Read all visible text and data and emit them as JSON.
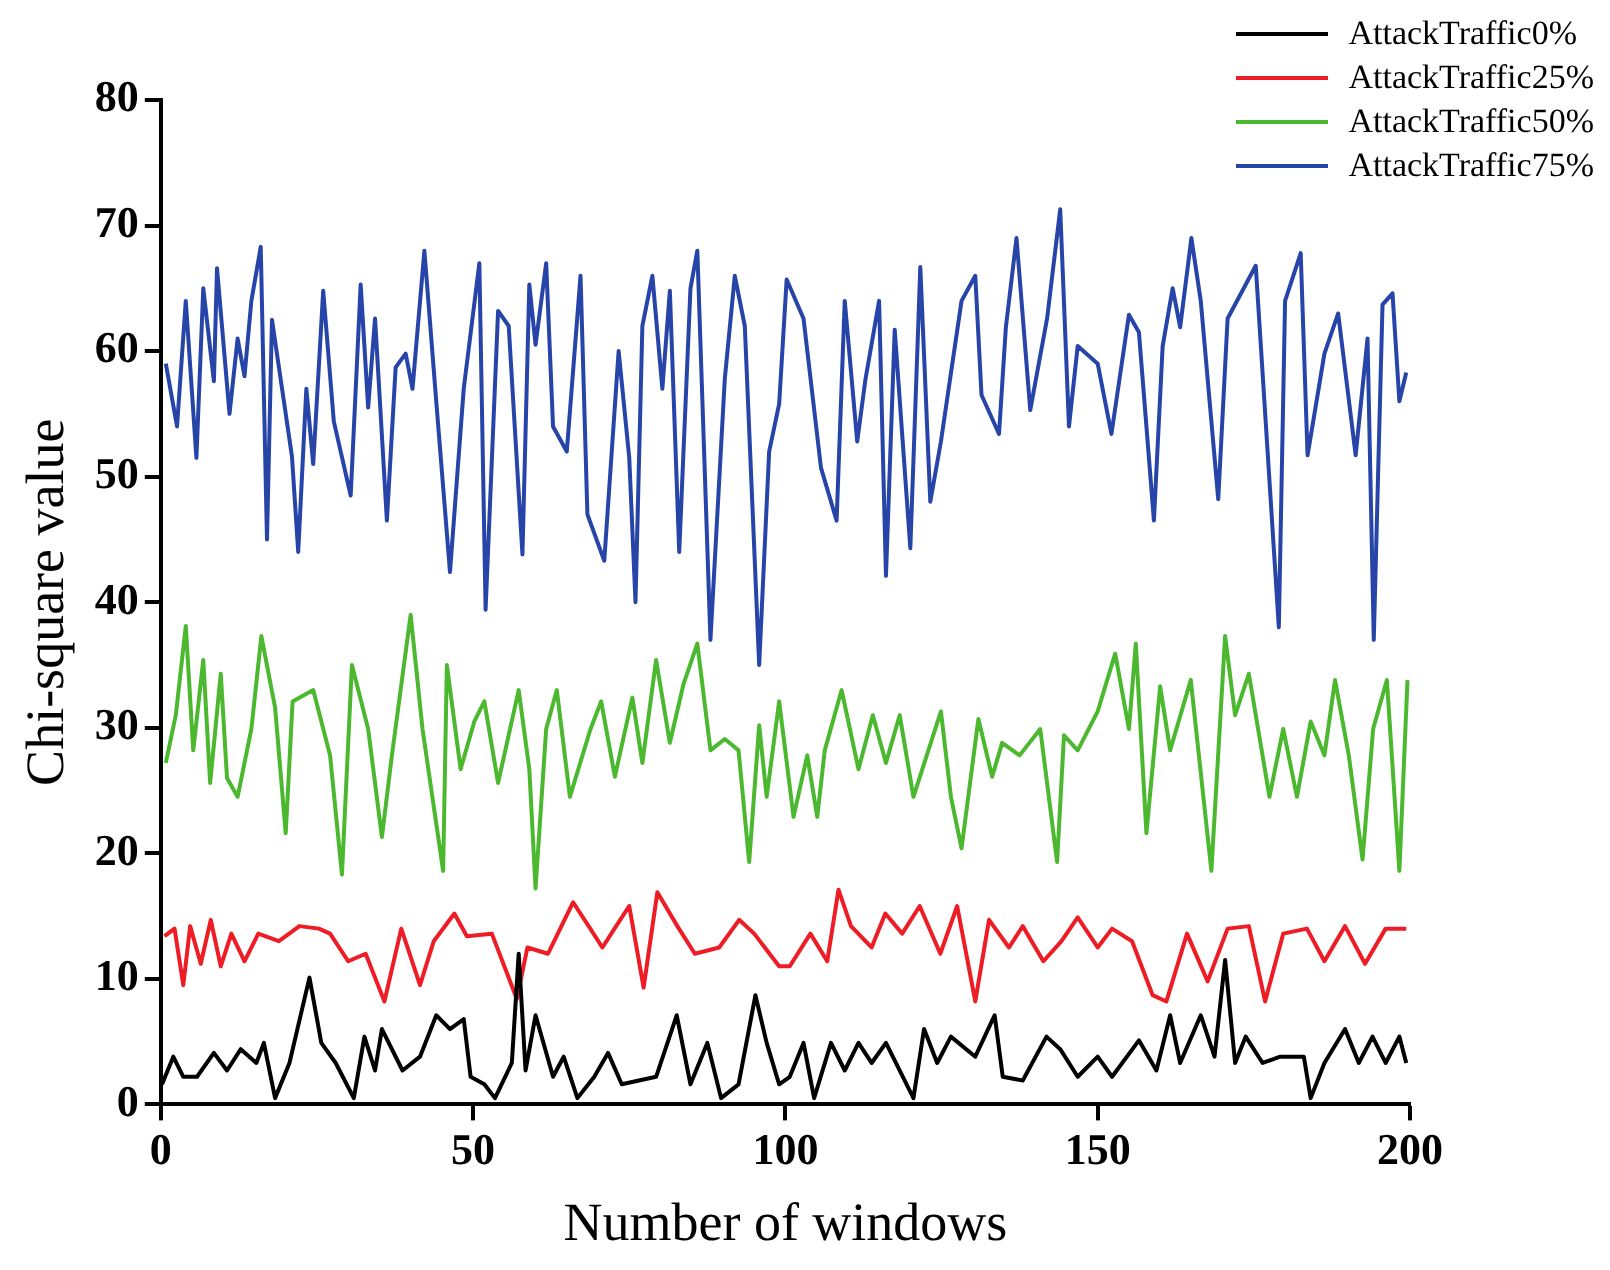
{
  "chart_data": {
    "type": "line",
    "xlabel": "Number of windows",
    "ylabel": "Chi-square value",
    "xlim": [
      0,
      200
    ],
    "xticks": [
      0,
      50,
      100,
      150,
      200
    ],
    "ylim": [
      0,
      80
    ],
    "yticks": [
      0,
      10,
      20,
      30,
      40,
      50,
      60,
      70,
      80
    ],
    "grid": false,
    "legend": "top right",
    "marker": "none",
    "line_style": "solid",
    "series": [
      {
        "name": "AttackTraffic0%",
        "color": "#000000",
        "x": [
          0.2,
          2,
          3.6,
          5.8,
          8.5,
          10.6,
          12.8,
          15.3,
          16.5,
          18.3,
          20.6,
          23.8,
          25.7,
          28,
          30.9,
          32.6,
          34.3,
          35.4,
          38.7,
          41.5,
          44.1,
          46.3,
          48.5,
          49.6,
          51.8,
          53.5,
          56.2,
          57.3,
          58.4,
          60,
          62.8,
          64.5,
          66.7,
          69.4,
          71.6,
          73.8,
          79.3,
          82.6,
          84.8,
          87.5,
          89.7,
          92.5,
          95.2,
          97,
          99,
          100.7,
          102.9,
          104.6,
          107.3,
          109.5,
          111.7,
          113.8,
          116.1,
          120.5,
          122.2,
          124.3,
          126.5,
          130.4,
          133.5,
          134.8,
          138,
          141.8,
          144,
          146.8,
          150,
          152.3,
          156.6,
          159.4,
          161.6,
          163.2,
          166.5,
          168.7,
          170.4,
          172,
          173.7,
          176.4,
          179.2,
          183,
          184.1,
          186.3,
          189.6,
          191.8,
          194,
          196.1,
          198.3,
          199.4
        ],
        "values": [
          1.6,
          3.8,
          2.2,
          2.2,
          4.1,
          2.7,
          4.4,
          3.3,
          4.9,
          0.5,
          3.3,
          10.1,
          4.9,
          3.3,
          0.5,
          5.4,
          2.7,
          6,
          2.7,
          3.8,
          7.1,
          6,
          6.8,
          2.2,
          1.6,
          0.5,
          3.3,
          12,
          2.7,
          7.1,
          2.2,
          3.8,
          0.5,
          2.2,
          4.1,
          1.6,
          2.2,
          7.1,
          1.6,
          4.9,
          0.5,
          1.6,
          8.7,
          4.9,
          1.6,
          2.2,
          4.9,
          0.5,
          4.9,
          2.7,
          4.9,
          3.3,
          4.9,
          0.5,
          6,
          3.3,
          5.4,
          3.8,
          7.1,
          2.2,
          1.9,
          5.4,
          4.4,
          2.2,
          3.8,
          2.2,
          5.1,
          2.7,
          7.1,
          3.3,
          7.1,
          3.8,
          11.5,
          3.3,
          5.4,
          3.3,
          3.8,
          3.8,
          0.5,
          3.3,
          6,
          3.3,
          5.4,
          3.3,
          5.4,
          3.3
        ]
      },
      {
        "name": "AttackTraffic25%",
        "color": "#ee1c24",
        "x": [
          0.6,
          2.2,
          3.6,
          4.7,
          6.4,
          8,
          9.6,
          11.3,
          13.4,
          15.6,
          18.9,
          22.2,
          25.3,
          27.1,
          30,
          32.8,
          35.8,
          38.5,
          41.5,
          43.7,
          47,
          49,
          53,
          57,
          58.7,
          62,
          66,
          68.5,
          70.7,
          72.9,
          75,
          77.3,
          79.5,
          82.7,
          85.5,
          89.4,
          92.6,
          95,
          99,
          100.7,
          104,
          106.7,
          108.5,
          110.5,
          113.8,
          116,
          118.7,
          121.5,
          124.8,
          127.5,
          130.4,
          132.6,
          135.8,
          138,
          141.3,
          144.2,
          146.8,
          150,
          152.3,
          155.5,
          158.8,
          161,
          164.3,
          167.6,
          170.8,
          174.2,
          176.8,
          179.7,
          183.5,
          186.3,
          189.6,
          192.8,
          196.1,
          199.4
        ],
        "values": [
          13.4,
          14,
          9.5,
          14.2,
          11.2,
          14.7,
          11,
          13.6,
          11.4,
          13.6,
          13,
          14.2,
          14,
          13.6,
          11.4,
          12,
          8.2,
          14,
          9.5,
          13,
          15.2,
          13.4,
          13.6,
          8.4,
          12.5,
          12,
          16.1,
          14.2,
          12.5,
          14.2,
          15.8,
          9.3,
          16.9,
          14.2,
          12,
          12.5,
          14.7,
          13.6,
          11,
          11,
          13.6,
          11.4,
          17.1,
          14.2,
          12.5,
          15.2,
          13.6,
          15.8,
          12,
          15.8,
          8.2,
          14.7,
          12.5,
          14.2,
          11.4,
          13,
          14.9,
          12.5,
          14,
          13,
          8.7,
          8.2,
          13.6,
          9.8,
          14,
          14.2,
          8.2,
          13.6,
          14,
          11.4,
          14.2,
          11.2,
          14,
          14
        ]
      },
      {
        "name": "AttackTraffic50%",
        "color": "#4cb830",
        "x": [
          0.8,
          2.4,
          4,
          5.2,
          6.8,
          7.9,
          9.6,
          10.6,
          12.3,
          14.5,
          16.1,
          18.3,
          20,
          21.1,
          24.4,
          27.1,
          29,
          30.6,
          33.2,
          35.4,
          37,
          40,
          41.9,
          45.2,
          45.8,
          48,
          50.2,
          51.8,
          54,
          57.3,
          59,
          60,
          61.7,
          63.4,
          65.5,
          68.8,
          70.5,
          72.7,
          75.5,
          77.1,
          79.3,
          81.5,
          83.7,
          85.9,
          88,
          90.3,
          92.5,
          94.2,
          95.8,
          97,
          99,
          101.3,
          103.5,
          105.1,
          106.3,
          109,
          111.7,
          114,
          116.1,
          118.3,
          120.5,
          124.9,
          126.5,
          128.2,
          130.9,
          133.1,
          134.7,
          137.5,
          140.8,
          143.5,
          144.6,
          146.8,
          150,
          152.8,
          155,
          156.1,
          157.8,
          160,
          161.6,
          164.9,
          166.2,
          168.2,
          170.4,
          172,
          174.2,
          177.5,
          179.7,
          181.9,
          184.1,
          186.3,
          188,
          190.2,
          192.4,
          194.1,
          196.3,
          198.3,
          199.6
        ],
        "values": [
          27.2,
          31,
          38.1,
          28.2,
          35.4,
          25.6,
          34.3,
          26,
          24.5,
          29.9,
          37.3,
          31.6,
          21.6,
          32.1,
          33,
          27.8,
          18.3,
          35,
          29.9,
          21.3,
          27.8,
          39,
          29.9,
          18.6,
          35,
          26.7,
          30.5,
          32.1,
          25.6,
          33,
          26.7,
          17.2,
          29.9,
          33,
          24.5,
          29.9,
          32.1,
          26.1,
          32.4,
          27.2,
          35.4,
          28.8,
          33.5,
          36.7,
          28.2,
          29.1,
          28.2,
          19.3,
          30.2,
          24.5,
          32.1,
          22.9,
          27.8,
          22.9,
          28.2,
          33,
          26.7,
          31,
          27.2,
          31,
          24.5,
          31.3,
          24.5,
          20.4,
          30.7,
          26.1,
          28.8,
          27.8,
          29.9,
          19.3,
          29.4,
          28.2,
          31.3,
          35.9,
          29.9,
          36.7,
          21.6,
          33.3,
          28.2,
          33.8,
          27.8,
          18.6,
          37.3,
          31,
          34.3,
          24.5,
          29.9,
          24.5,
          30.5,
          27.8,
          33.8,
          27.8,
          19.5,
          29.9,
          33.8,
          18.6,
          33.8
        ]
      },
      {
        "name": "AttackTraffic75%",
        "color": "#2744a8",
        "x": [
          0.8,
          2.6,
          4,
          5.7,
          6.8,
          8.5,
          9,
          11,
          12.3,
          13.4,
          14.5,
          16,
          17,
          17.8,
          21,
          22,
          23.3,
          24.4,
          26,
          27.7,
          30.4,
          32,
          33.2,
          34.3,
          36.2,
          37.6,
          39.2,
          40.3,
          42.2,
          44.1,
          46.3,
          48.5,
          51,
          52,
          54,
          55.7,
          57.9,
          59,
          60,
          61.7,
          62.8,
          65,
          67.2,
          68.3,
          71,
          73.3,
          75,
          76,
          77.1,
          78.7,
          80.3,
          81.5,
          83,
          84.8,
          85.9,
          88,
          90.3,
          91.9,
          93.5,
          95.8,
          97.4,
          99,
          100.2,
          102.9,
          105.7,
          108.2,
          109.5,
          111.5,
          112.8,
          115,
          116.1,
          117.5,
          120,
          121.6,
          123.2,
          124.9,
          128.2,
          130.4,
          131.4,
          134.2,
          135.3,
          137,
          139.2,
          141.9,
          144,
          145.4,
          146.8,
          150,
          152.2,
          155,
          156.6,
          159,
          160.4,
          162,
          163.2,
          165,
          166.5,
          169.3,
          170.8,
          175.3,
          179,
          180,
          182.5,
          183.6,
          186.3,
          188.5,
          191.3,
          193.2,
          194.2,
          195.6,
          197.2,
          198.3,
          199.4
        ],
        "values": [
          59,
          54,
          64,
          51.5,
          65,
          57.6,
          66.6,
          55,
          61,
          58,
          64,
          68.3,
          45,
          62.5,
          51.6,
          44,
          57,
          51,
          64.8,
          54.4,
          48.5,
          65.3,
          55.5,
          62.6,
          46.5,
          58.7,
          59.8,
          57,
          68,
          56,
          42.4,
          57,
          67,
          39.4,
          63.2,
          62,
          43.8,
          65.3,
          60.5,
          67,
          54,
          52,
          66,
          47,
          43.3,
          60,
          51.5,
          40,
          62,
          66,
          57,
          64.8,
          44,
          65,
          68,
          37,
          57.8,
          66,
          62,
          35,
          52,
          55.8,
          65.7,
          62.6,
          50.7,
          46.5,
          64,
          52.8,
          57.7,
          64,
          42.1,
          61.7,
          44.3,
          66.7,
          48,
          52.8,
          64,
          66,
          56.5,
          53.4,
          61.9,
          69,
          55.3,
          62.6,
          71.3,
          54,
          60.4,
          59,
          53.4,
          62.9,
          61.5,
          46.5,
          60.4,
          65,
          61.9,
          69,
          64,
          48.2,
          62.6,
          66.8,
          38,
          64,
          67.8,
          51.7,
          59.8,
          63,
          51.7,
          61,
          37,
          63.7,
          64.6,
          56,
          58.3
        ]
      }
    ]
  }
}
